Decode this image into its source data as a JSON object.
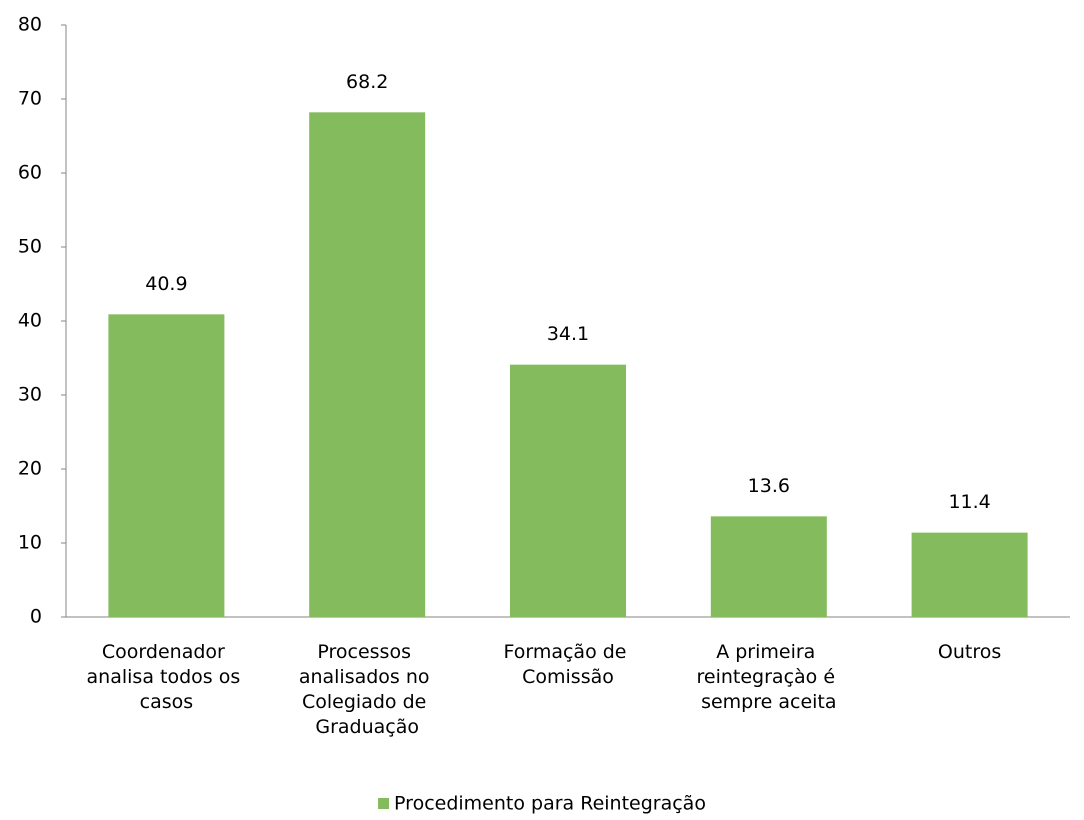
{
  "chart_data": {
    "type": "bar",
    "categories": [
      "Coordenador analisa todos os casos",
      "Processos analisados no Colegiado de Graduação",
      "Formação de Comissão",
      "A primeira reintegraçào é sempre aceita",
      "Outros"
    ],
    "series": [
      {
        "name": "Procedimento para Reintegração",
        "color": "#84bb5c",
        "values": [
          40.9,
          68.2,
          34.1,
          13.6,
          11.4
        ]
      }
    ],
    "ylim": [
      0,
      80
    ],
    "yticks": [
      0,
      10,
      20,
      30,
      40,
      50,
      60,
      70,
      80
    ],
    "legend": "bottom"
  }
}
